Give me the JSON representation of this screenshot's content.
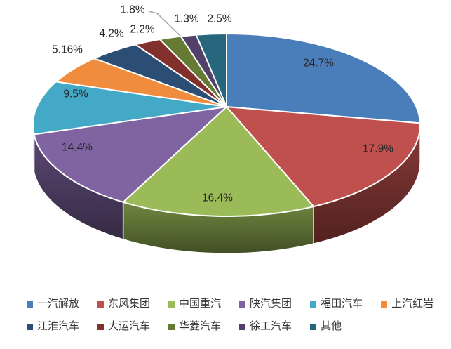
{
  "chart_data": {
    "type": "pie",
    "projection": "3d",
    "title": "",
    "unit": "%",
    "legend_position": "bottom",
    "background": "#FFFFFF",
    "label_color": "#262626",
    "slice_border_color": "#FFFFFF",
    "leader_line_color": "#A8A8A8",
    "start_angle_clockwise_from_top": 0,
    "series": [
      {
        "label": "一汽解放",
        "value": 24.7,
        "display": "24.7%",
        "color": "#4A7EBB"
      },
      {
        "label": "东风集团",
        "value": 17.9,
        "display": "17.9%",
        "color": "#C0504D"
      },
      {
        "label": "中国重汽",
        "value": 16.4,
        "display": "16.4%",
        "color": "#9BBB59"
      },
      {
        "label": "陕汽集团",
        "value": 14.4,
        "display": "14.4%",
        "color": "#8064A2"
      },
      {
        "label": "福田汽车",
        "value": 9.5,
        "display": "9.5%",
        "color": "#44A8C7"
      },
      {
        "label": "上汽红岩",
        "value": 5.16,
        "display": "5.16%",
        "color": "#F08C3D"
      },
      {
        "label": "江淮汽车",
        "value": 4.2,
        "display": "4.2%",
        "color": "#2C4D74"
      },
      {
        "label": "大运汽车",
        "value": 2.2,
        "display": "2.2%",
        "color": "#82302C"
      },
      {
        "label": "华菱汽车",
        "value": 1.8,
        "display": "1.8%",
        "color": "#657B33"
      },
      {
        "label": "徐工汽车",
        "value": 1.3,
        "display": "1.3%",
        "color": "#52406B"
      },
      {
        "label": "其他",
        "value": 2.5,
        "display": "2.5%",
        "color": "#26677E"
      }
    ]
  }
}
